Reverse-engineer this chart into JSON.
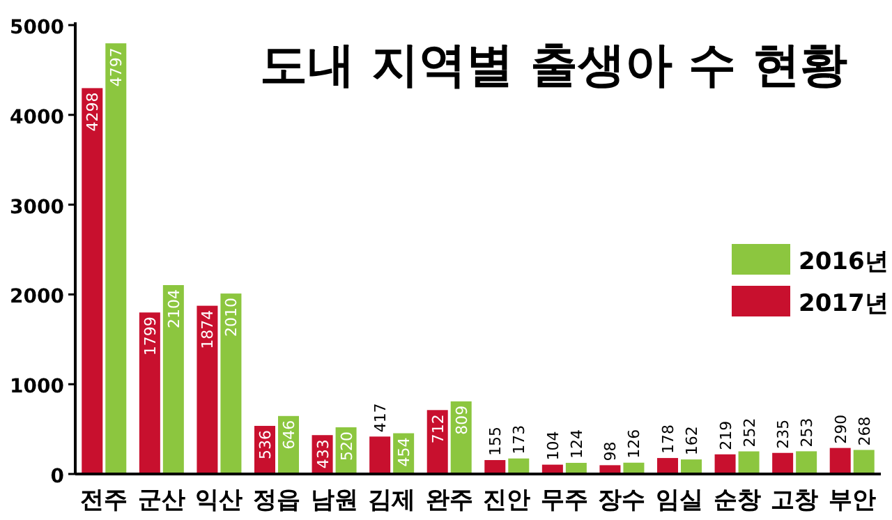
{
  "chart_data": {
    "type": "bar",
    "title": "도내 지역별 출생아 수 현황",
    "categories": [
      "전주",
      "군산",
      "익산",
      "정읍",
      "남원",
      "김제",
      "완주",
      "진안",
      "무주",
      "장수",
      "임실",
      "순창",
      "고창",
      "부안"
    ],
    "series": [
      {
        "name": "2017년",
        "color": "#c8102e",
        "values": [
          4298,
          1799,
          1874,
          536,
          433,
          417,
          712,
          155,
          104,
          98,
          178,
          219,
          235,
          290
        ]
      },
      {
        "name": "2016년",
        "color": "#8cc63f",
        "values": [
          4797,
          2104,
          2010,
          646,
          520,
          454,
          809,
          173,
          124,
          126,
          162,
          252,
          253,
          268
        ]
      }
    ],
    "ylim": [
      0,
      5000
    ],
    "yticks": [
      0,
      1000,
      2000,
      3000,
      4000,
      5000
    ],
    "data_labels": true,
    "legend": "right",
    "grid": false
  }
}
